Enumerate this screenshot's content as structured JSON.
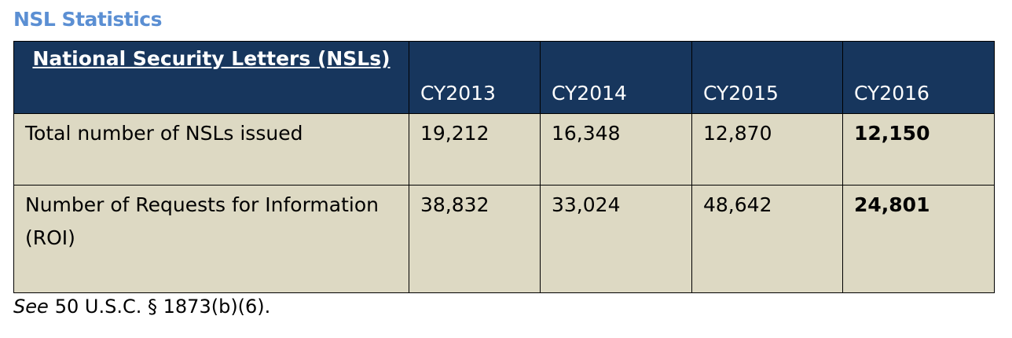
{
  "title": "NSL Statistics",
  "table": {
    "header": [
      "National Security Letters (NSLs)",
      "CY2013",
      "CY2014",
      "CY2015",
      "CY2016"
    ],
    "rows": [
      [
        "Total number of NSLs issued",
        "19,212",
        "16,348",
        "12,870",
        "12,150"
      ],
      [
        "Number of Requests for Information (ROI)",
        "38,832",
        "33,024",
        "48,642",
        "24,801"
      ]
    ]
  },
  "footnote": {
    "emphasis": "See",
    "text": "50 U.S.C. § 1873(b)(6)."
  }
}
